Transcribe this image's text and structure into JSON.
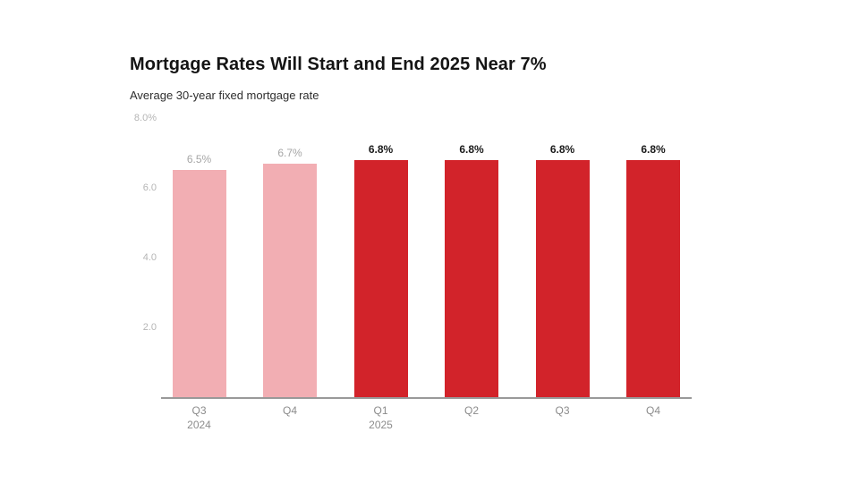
{
  "chart_data": {
    "type": "bar",
    "title": "Mortgage Rates Will Start and End 2025 Near 7%",
    "subtitle": "Average 30-year fixed mortgage rate",
    "xlabel": "",
    "ylabel": "",
    "ylim": [
      0,
      8
    ],
    "grid": false,
    "legend": "none",
    "y_ticks": [
      {
        "label": "8.0%",
        "value": 8.0
      },
      {
        "label": "6.0",
        "value": 6.0
      },
      {
        "label": "4.0",
        "value": 4.0
      },
      {
        "label": "2.0",
        "value": 2.0
      }
    ],
    "bars": [
      {
        "quarter": "Q3",
        "year": "2024",
        "value": 6.5,
        "label": "6.5%",
        "emphasis": false
      },
      {
        "quarter": "Q4",
        "year": "",
        "value": 6.7,
        "label": "6.7%",
        "emphasis": false
      },
      {
        "quarter": "Q1",
        "year": "2025",
        "value": 6.8,
        "label": "6.8%",
        "emphasis": true
      },
      {
        "quarter": "Q2",
        "year": "",
        "value": 6.8,
        "label": "6.8%",
        "emphasis": true
      },
      {
        "quarter": "Q3",
        "year": "",
        "value": 6.8,
        "label": "6.8%",
        "emphasis": true
      },
      {
        "quarter": "Q4",
        "year": "",
        "value": 6.8,
        "label": "6.8%",
        "emphasis": true
      }
    ],
    "colors": {
      "past_bar": "#f2aeb3",
      "forecast_bar": "#d2232a",
      "past_label": "#a6a6a6",
      "forecast_label": "#1a1a1a",
      "axis_line": "#999999",
      "tick_label": "#b5b5b5",
      "x_label": "#8c8c8c"
    }
  }
}
